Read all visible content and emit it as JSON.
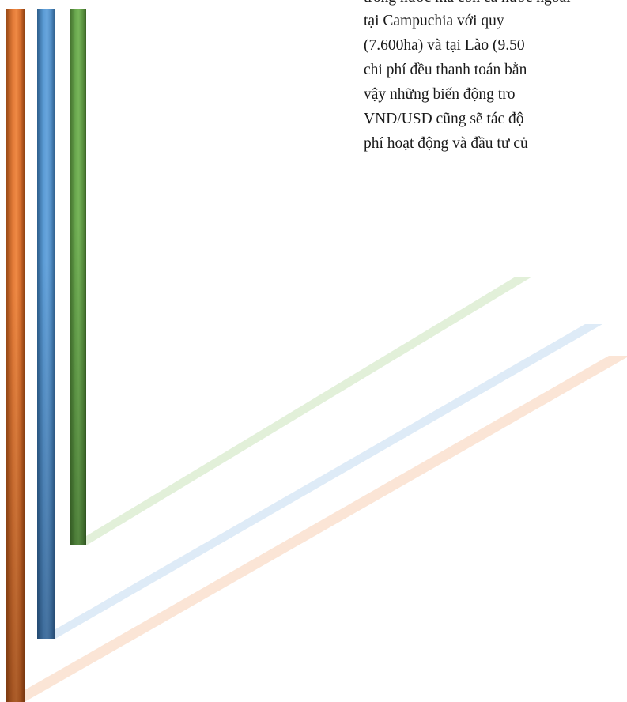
{
  "document": {
    "lines": [
      "trong nước mà còn cả nước ngoài",
      "tại  Campuchia  với  quy",
      "(7.600ha) và tại Lào (9.50",
      "chi phí đều thanh toán bằn",
      "vậy  những  biến  động  tro",
      "VND/USD cũng sẽ tác độ",
      "phí hoạt động và đầu tư củ"
    ]
  },
  "decoration": {
    "bar_colors": {
      "orange": "#e27a37",
      "blue": "#5b9bd5",
      "green": "#6aa84f"
    },
    "stripe_colors": {
      "green": "#e2f0d9",
      "blue": "#deebf7",
      "orange": "#fbe5d6"
    }
  }
}
